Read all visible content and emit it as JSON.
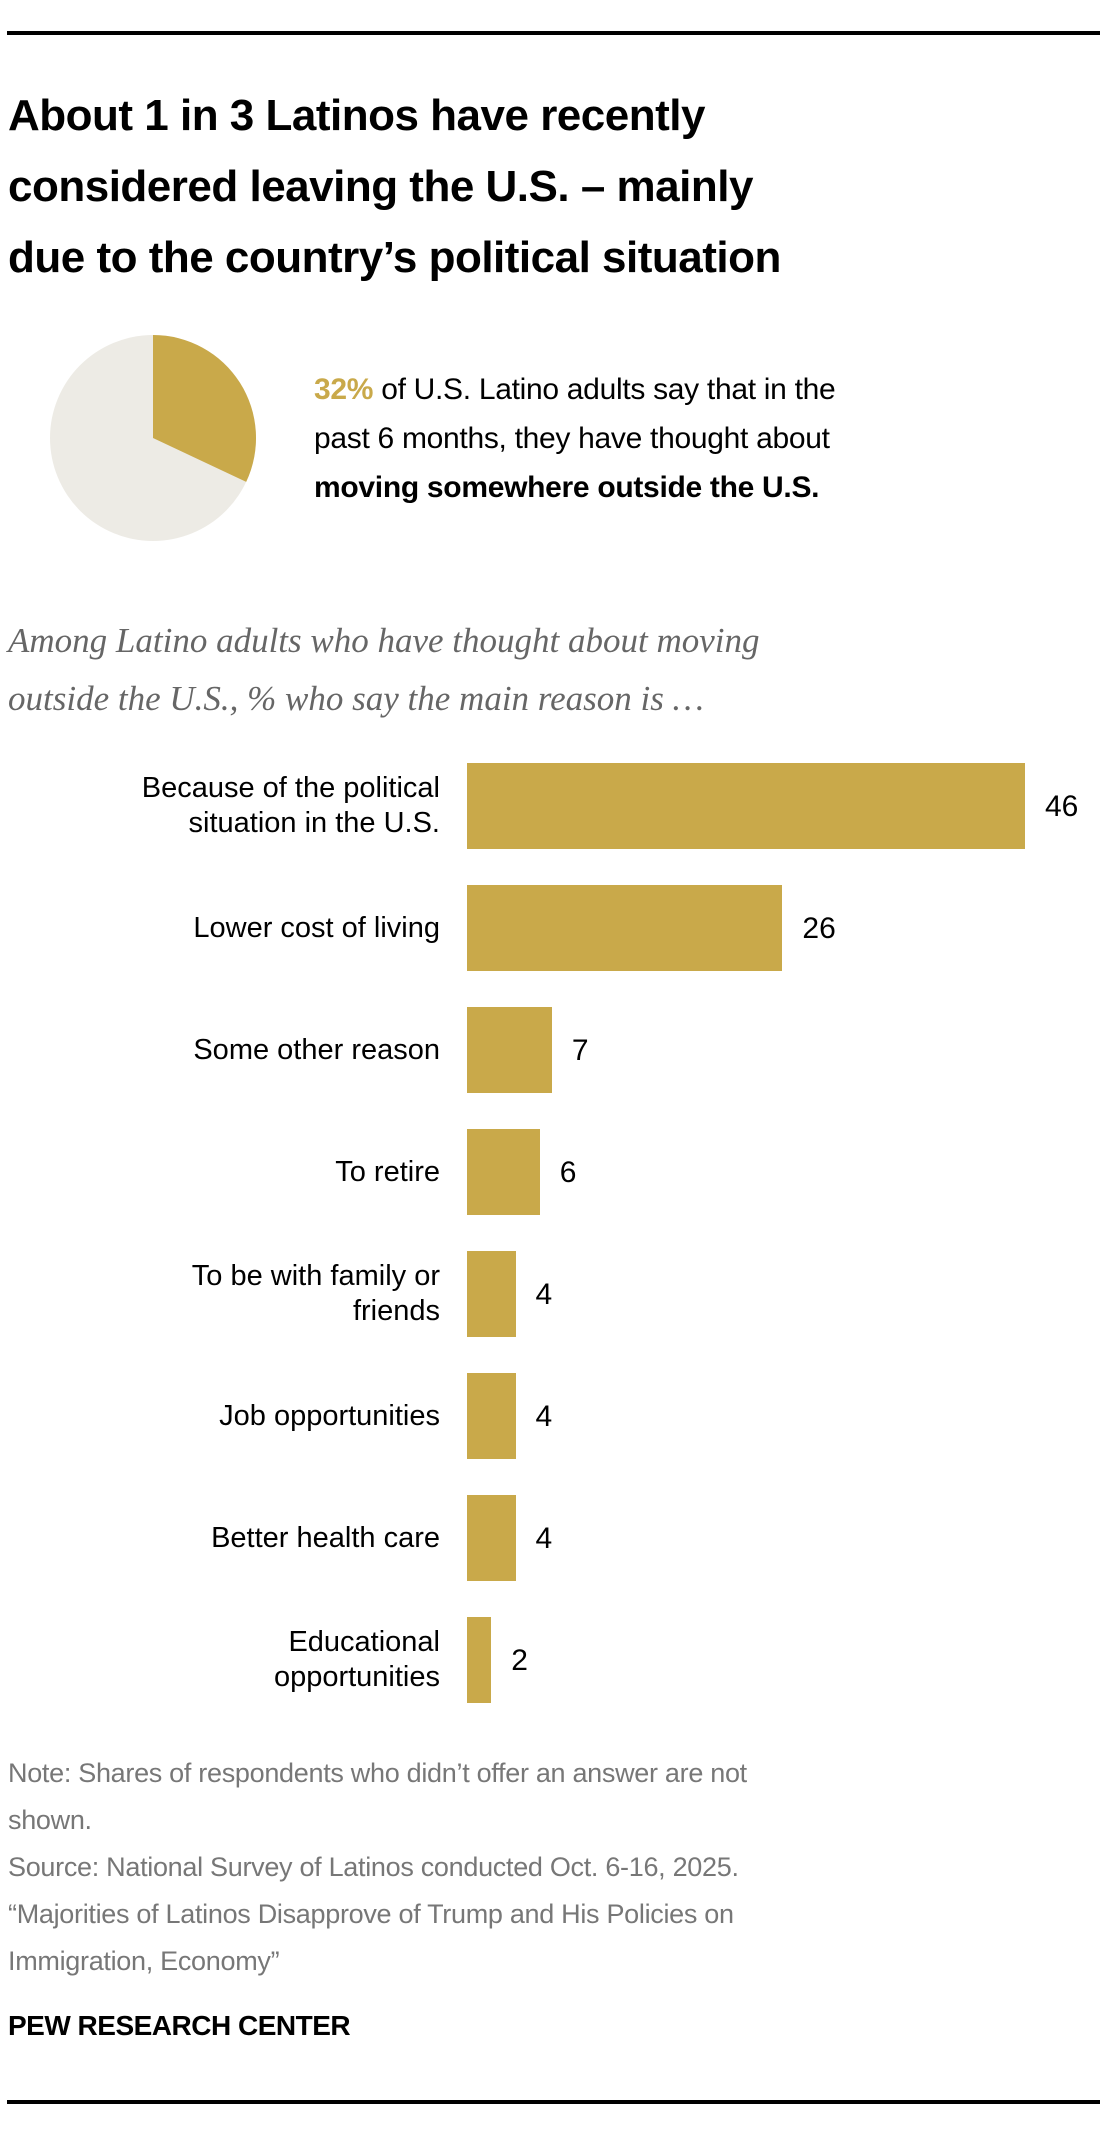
{
  "header": {
    "title_lines": [
      "About 1 in 3 Latinos have recently",
      "considered leaving the U.S. – mainly",
      "due to the country’s political situation"
    ]
  },
  "callout": {
    "pct": "32%",
    "line1_rest": " of U.S. Latino adults say that in the",
    "line2": "past 6 months, they have thought about",
    "line3_bold": "moving somewhere outside the U.S."
  },
  "pie_data": {
    "value": 32,
    "total": 100
  },
  "subtitle_lines": [
    "Among Latino adults who have thought about moving",
    "outside the U.S., % who say the main reason is …"
  ],
  "colors": {
    "bar": "#C9A94A",
    "pie_rest": "#EDEBE5"
  },
  "chart_data": {
    "type": "bar",
    "orientation": "horizontal",
    "title": "Among Latino adults who have thought about moving outside the U.S., % who say the main reason is …",
    "categories": [
      [
        "Because of the political",
        "situation in the U.S."
      ],
      [
        "Lower cost of living"
      ],
      [
        "Some other reason"
      ],
      [
        "To retire"
      ],
      [
        "To be with family or",
        "friends"
      ],
      [
        "Job opportunities"
      ],
      [
        "Better health care"
      ],
      [
        "Educational",
        "opportunities"
      ]
    ],
    "values": [
      46,
      26,
      7,
      6,
      4,
      4,
      4,
      2
    ],
    "xlim": [
      0,
      50
    ],
    "grid": false,
    "legend": "none"
  },
  "footer": {
    "note_lines": [
      "Note: Shares of respondents who didn’t offer an answer are not",
      "shown.",
      "Source: National Survey of Latinos conducted Oct. 6-16, 2025.",
      "“Majorities of Latinos Disapprove of Trump and His Policies on",
      "Immigration, Economy”"
    ],
    "brand": "PEW RESEARCH CENTER"
  }
}
